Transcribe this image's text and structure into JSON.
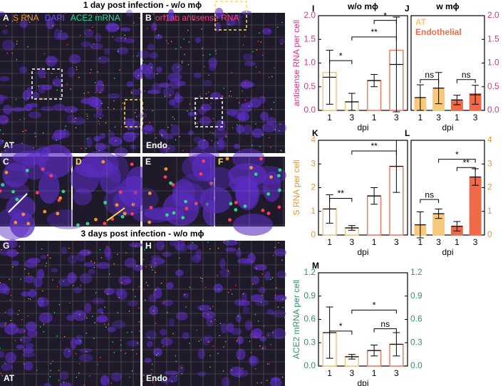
{
  "figure": {
    "row1_title": "1 day post infection - w/o mϕ",
    "row3_title": "3 days post infection - w/o mϕ",
    "images": [
      {
        "panel": "A",
        "label": "AT",
        "legend": [
          "S RNA",
          "DAPI",
          "ACE2 mRNA"
        ]
      },
      {
        "panel": "B",
        "label": "Endo",
        "legend": [
          "orf1ab antisense RNA"
        ]
      },
      {
        "panel": "C"
      },
      {
        "panel": "D"
      },
      {
        "panel": "E"
      },
      {
        "panel": "F"
      },
      {
        "panel": "G",
        "label": "AT"
      },
      {
        "panel": "H",
        "label": "Endo"
      }
    ]
  },
  "chart_data": [
    {
      "type": "bar",
      "panel": "I",
      "title": "w/o mϕ",
      "ylabel": "antisense RNA per cell",
      "xlabel": "dpi",
      "axis_color": "#e0308a",
      "categories": [
        "1",
        "3",
        "1",
        "3"
      ],
      "values": [
        0.8,
        0.18,
        0.63,
        1.27
      ],
      "centers": [
        0.7,
        0.18,
        0.63,
        0.97
      ],
      "errors": [
        0.57,
        0.18,
        0.13,
        1.0
      ],
      "colors": [
        "#f5c77e",
        "#f5c77e",
        "#f07f5f",
        "#f07f5f"
      ],
      "filled": false,
      "ylim": [
        0,
        2
      ],
      "yticks": [
        {
          "value": 0,
          "label": "0.0"
        },
        0.5,
        {
          "value": 1,
          "label": "1.0"
        },
        1.5,
        {
          "value": 2,
          "label": "2.0"
        }
      ],
      "axis_side": "left",
      "significance": [
        "*",
        "**",
        "*"
      ]
    },
    {
      "type": "bar",
      "panel": "J",
      "title": "w mϕ",
      "xlabel": "dpi",
      "axis_color": "#e0308a",
      "categories": [
        "1",
        "3",
        "1",
        "3"
      ],
      "values": [
        0.27,
        0.47,
        0.22,
        0.35
      ],
      "centers": [
        0.27,
        0.47,
        0.22,
        0.33
      ],
      "errors": [
        0.27,
        0.33,
        0.1,
        0.2
      ],
      "colors": [
        "#f7c97a",
        "#f7c97a",
        "#f06a4a",
        "#f06a4a"
      ],
      "filled": true,
      "ylim": [
        0,
        2
      ],
      "yticks": [
        {
          "value": 0,
          "label": "0.0"
        },
        0.5,
        {
          "value": 1,
          "label": "1.0"
        },
        1.5,
        {
          "value": 2,
          "label": "2.0"
        }
      ],
      "axis_side": "right",
      "significance": [
        "ns",
        "ns"
      ],
      "legend": [
        {
          "name": "AT",
          "color": "#f7c97a"
        },
        {
          "name": "Endothelial",
          "color": "#f06a4a"
        }
      ]
    },
    {
      "type": "bar",
      "panel": "K",
      "ylabel": "S RNA per cell",
      "xlabel": "dpi",
      "axis_color": "#f0962a",
      "categories": [
        "1",
        "3",
        "1",
        "3"
      ],
      "values": [
        1.1,
        0.3,
        1.65,
        2.9
      ],
      "centers": [
        1.1,
        0.3,
        1.65,
        2.9
      ],
      "errors": [
        0.6,
        0.1,
        0.35,
        1.1
      ],
      "colors": [
        "#f5c77e",
        "#f5c77e",
        "#f07f5f",
        "#f07f5f"
      ],
      "filled": false,
      "ylim": [
        0,
        4
      ],
      "yticks": [
        0,
        1,
        2,
        3,
        4
      ],
      "axis_side": "left",
      "significance": [
        "**",
        "**"
      ]
    },
    {
      "type": "bar",
      "panel": "L",
      "xlabel": "dpi",
      "axis_color": "#f0962a",
      "categories": [
        "1",
        "3",
        "1",
        "3"
      ],
      "values": [
        0.43,
        0.9,
        0.37,
        2.45
      ],
      "centers": [
        0.43,
        0.9,
        0.37,
        2.45
      ],
      "errors": [
        0.55,
        0.2,
        0.2,
        0.35
      ],
      "colors": [
        "#f7c97a",
        "#f7c97a",
        "#f06a4a",
        "#f06a4a"
      ],
      "filled": true,
      "ylim": [
        0,
        4
      ],
      "yticks": [
        0,
        1,
        2,
        3,
        4
      ],
      "axis_side": "right",
      "significance": [
        "ns",
        "*",
        "**"
      ]
    },
    {
      "type": "bar",
      "panel": "M",
      "ylabel": "ACE2 mRNA per cell",
      "xlabel": "dpi",
      "axis_color": "#2a9a5a",
      "categories": [
        "1",
        "3",
        "1",
        "3"
      ],
      "values": [
        0.43,
        0.12,
        0.2,
        0.28
      ],
      "centers": [
        0.43,
        0.12,
        0.2,
        0.28
      ],
      "errors": [
        0.33,
        0.03,
        0.07,
        0.15
      ],
      "colors": [
        "#f5c77e",
        "#f5c77e",
        "#f07f5f",
        "#f07f5f"
      ],
      "filled": false,
      "ylim": [
        0,
        1.2
      ],
      "yticks": [
        {
          "value": 0,
          "label": "0.0"
        },
        0.3,
        0.6,
        0.9,
        1.2
      ],
      "axis_side": "both",
      "significance": [
        "*",
        "*",
        "ns"
      ]
    }
  ]
}
